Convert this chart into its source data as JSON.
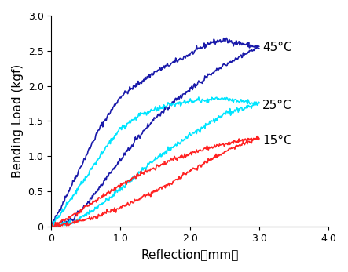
{
  "title": "",
  "xlabel": "Reflection（mm）",
  "ylabel": "Bending Load (kgf)",
  "xlim": [
    0,
    4.0
  ],
  "ylim": [
    0,
    3.0
  ],
  "xticks": [
    0,
    1.0,
    2.0,
    3.0,
    4.0
  ],
  "yticks": [
    0,
    0.5,
    1.0,
    1.5,
    2.0,
    2.5,
    3.0
  ],
  "colors": {
    "45C": "#1a1aaa",
    "25C": "#00e5ff",
    "15C": "#ff2222"
  },
  "labels": {
    "45C": "45°C",
    "25C": "25°C",
    "15C": "15°C"
  },
  "label_positions": {
    "45C": [
      3.05,
      2.55
    ],
    "25C": [
      3.05,
      1.72
    ],
    "15C": [
      3.05,
      1.22
    ]
  },
  "noise_seed": 42,
  "noise_amplitude": 0.015,
  "linewidth": 1.2
}
